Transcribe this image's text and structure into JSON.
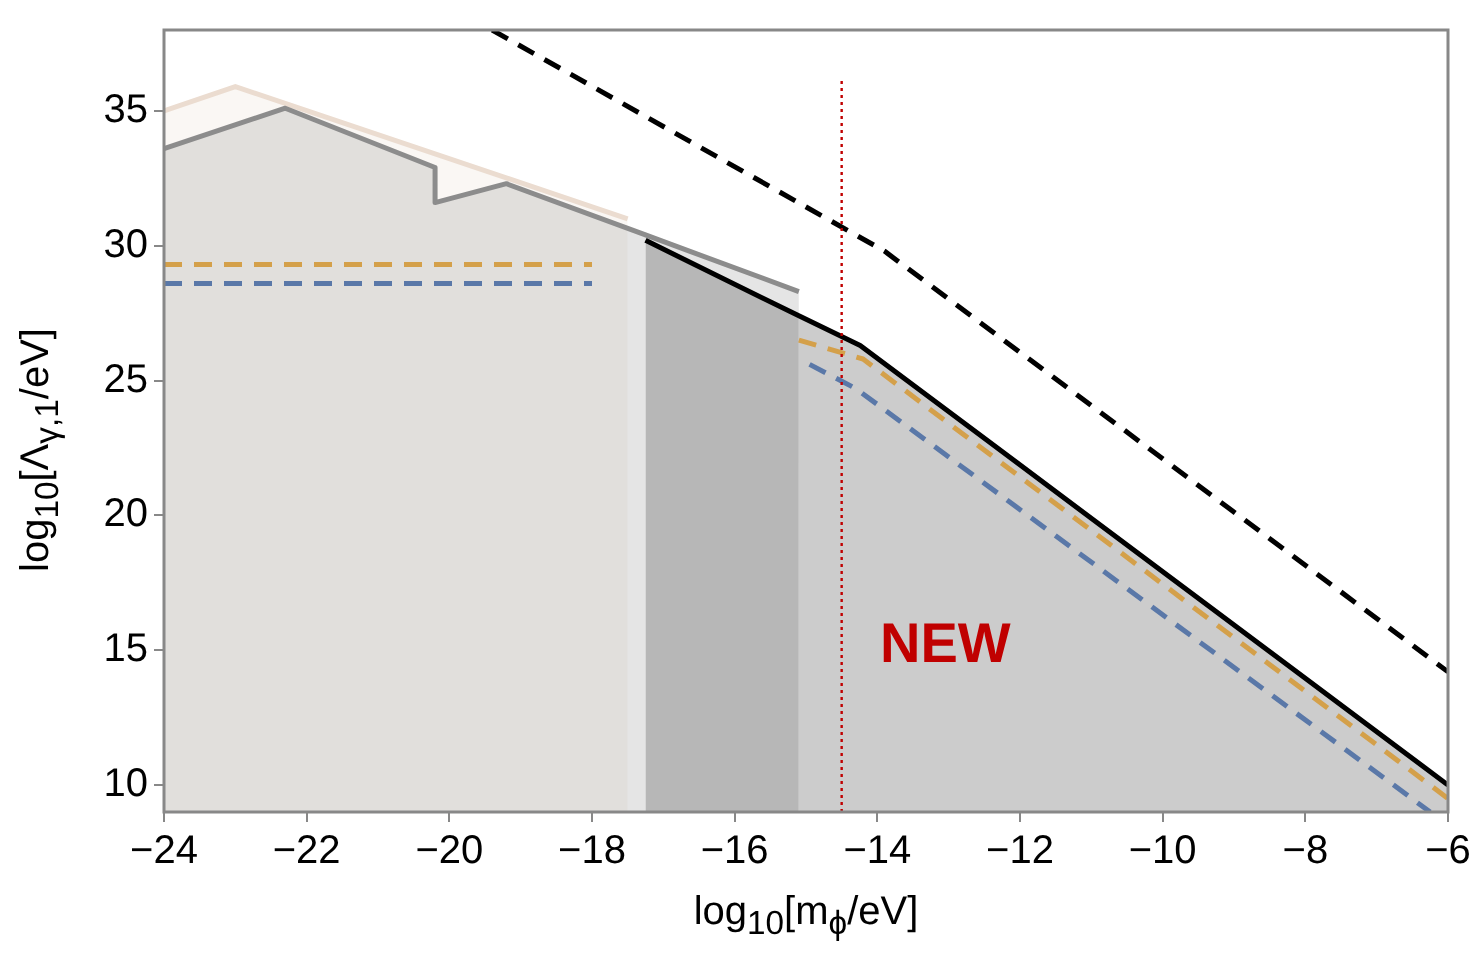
{
  "chart_data": {
    "type": "area",
    "xlabel": "log$_{10}$[m$_{ϕ}$/eV]",
    "ylabel": "log$_{10}$[Λ$_{γ,1}$/eV]",
    "xlim": [
      -24,
      -6
    ],
    "ylim": [
      9,
      38
    ],
    "xticks": [
      -24,
      -22,
      -20,
      -18,
      -16,
      -14,
      -12,
      -10,
      -8,
      -6
    ],
    "yticks": [
      10,
      15,
      20,
      25,
      30,
      35
    ],
    "annotations": [
      "NEW"
    ],
    "series": [
      {
        "type": "line",
        "color": "#c00000",
        "line_style": "dotted",
        "x": [
          -14.5,
          -14.5
        ],
        "values": [
          9,
          36.2
        ]
      },
      {
        "type": "line",
        "color": "#000000",
        "line_style": "dashed",
        "x": [
          -19.4,
          -13.9,
          -6
        ],
        "values": [
          38,
          29.8,
          14.2
        ]
      },
      {
        "type": "line",
        "color": "#5a78a8",
        "line_style": "dashed",
        "x": [
          -14.95,
          -14.3,
          -6.25
        ],
        "values": [
          25.6,
          24.7,
          9.0
        ]
      },
      {
        "type": "line",
        "color": "#d4a04a",
        "line_style": "dashed",
        "x": [
          -15.1,
          -14.2,
          -6
        ],
        "values": [
          26.5,
          25.8,
          9.5
        ]
      },
      {
        "type": "line",
        "color": "#5a78a8",
        "line_style": "dashed",
        "x": [
          -24,
          -18
        ],
        "values": [
          28.6,
          28.6
        ]
      },
      {
        "type": "line",
        "color": "#d4a04a",
        "line_style": "dashed",
        "x": [
          -24,
          -18
        ],
        "values": [
          29.3,
          29.3
        ]
      },
      {
        "type": "line",
        "color": "#000000",
        "line_style": "solid",
        "x": [
          -17.25,
          -15.1,
          -14.24,
          -6
        ],
        "values": [
          30.2,
          27.4,
          26.3,
          10.0
        ]
      },
      {
        "color": "#cccccc",
        "x": [
          -15.1,
          -14.24,
          -6
        ],
        "values": [
          27.4,
          26.3,
          10.0
        ]
      },
      {
        "color": "#b7b7b7",
        "x": [
          -17.25,
          -15.1
        ],
        "values": [
          30.2,
          27.4
        ]
      },
      {
        "color": "#8c8c8c",
        "line_style": "solid",
        "x": [
          -24,
          -22.3,
          -20.2,
          -20.2,
          -19.2,
          -17.25,
          -15.1
        ],
        "values": [
          33.6,
          35.1,
          32.9,
          31.6,
          32.3,
          30.4,
          28.3
        ]
      },
      {
        "color": "#ebdcd0",
        "line_style": "solid",
        "x": [
          -24,
          -23,
          -17.5
        ],
        "values": [
          35,
          35.9,
          31.0
        ]
      }
    ]
  }
}
